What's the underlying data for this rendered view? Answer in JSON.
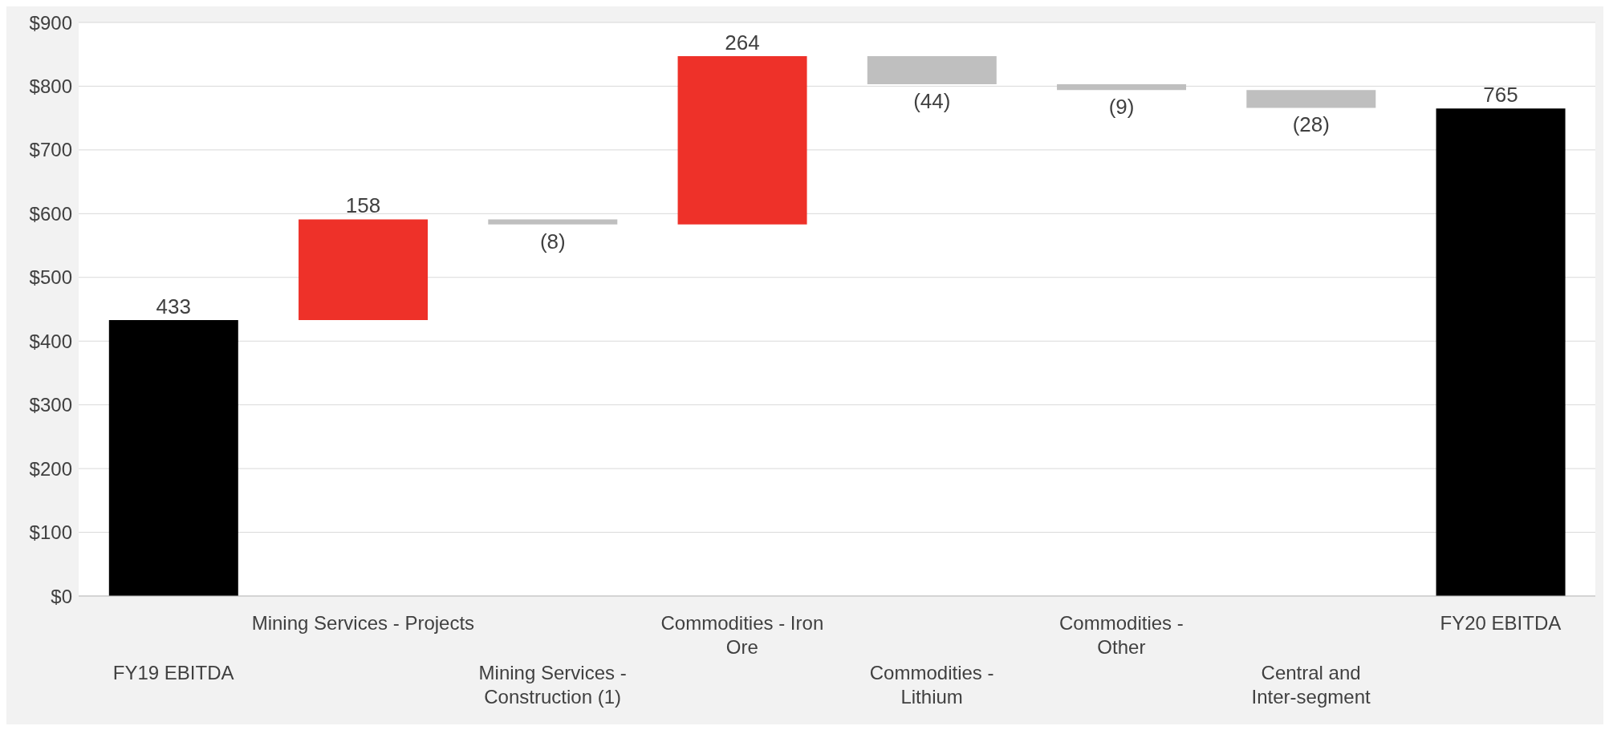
{
  "chart_data": {
    "type": "bar",
    "categories": [
      "FY19 EBITDA",
      "Mining Services - Projects",
      "Mining Services - Construction (1)",
      "Commodities - Iron Ore",
      "Commodities - Lithium",
      "Commodities - Other",
      "Central and Inter-segment",
      "FY20 EBITDA"
    ],
    "values": [
      433,
      158,
      -8,
      264,
      -44,
      -9,
      -28,
      765
    ],
    "base": [
      0,
      433,
      591,
      583,
      847,
      803,
      794,
      0
    ],
    "colors": [
      "#000000",
      "#ee3129",
      "#bfbfbf",
      "#ee3129",
      "#bfbfbf",
      "#bfbfbf",
      "#bfbfbf",
      "#000000"
    ],
    "value_labels": [
      "433",
      "158",
      "(8)",
      "264",
      "(44)",
      "(9)",
      "(28)",
      "765"
    ],
    "ylim": [
      0,
      900
    ],
    "yticks": [
      {
        "value": 0,
        "label": "$0"
      },
      {
        "value": 100,
        "label": "$100"
      },
      {
        "value": 200,
        "label": "$200"
      },
      {
        "value": 300,
        "label": "$300"
      },
      {
        "value": 400,
        "label": "$400"
      },
      {
        "value": 500,
        "label": "$500"
      },
      {
        "value": 600,
        "label": "$600"
      },
      {
        "value": 700,
        "label": "$700"
      },
      {
        "value": 800,
        "label": "$800"
      },
      {
        "value": 900,
        "label": "$900"
      }
    ],
    "grid": "y",
    "legend": false
  }
}
